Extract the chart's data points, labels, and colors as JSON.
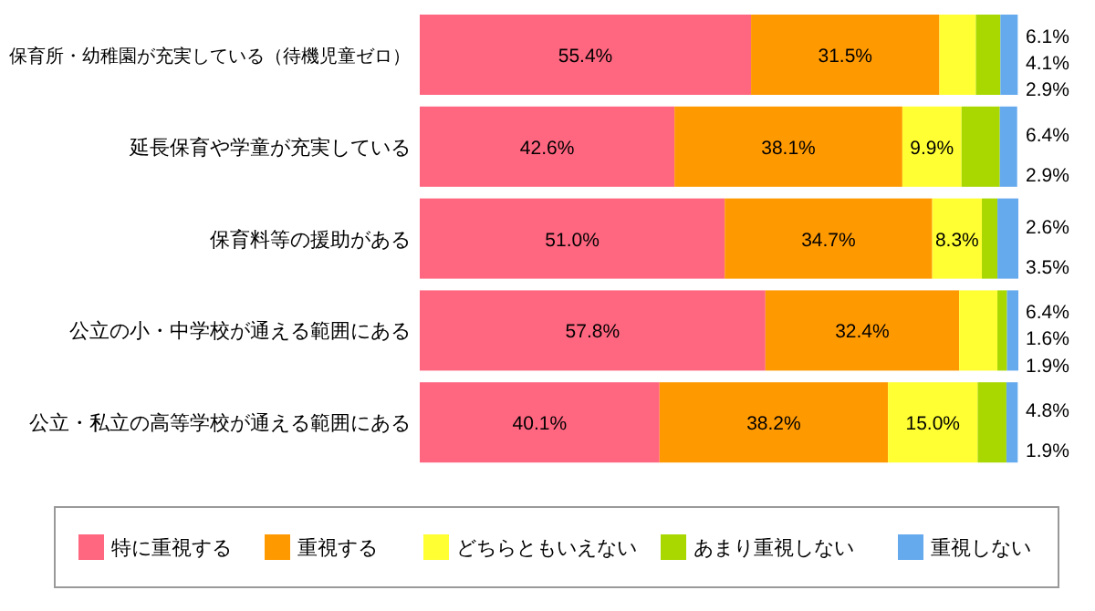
{
  "chart_data": {
    "type": "bar",
    "orientation": "horizontal",
    "stacked": true,
    "legend": "bottom",
    "categories": [
      "保育所・幼稚園が充実している（待機児童ゼロ）",
      "延長保育や学童が充実している",
      "保育料等の援助がある",
      "公立の小・中学校が通える範囲にある",
      "公立・私立の高等学校が通える範囲にある"
    ],
    "series": [
      {
        "name": "特に重視する",
        "color": "#ff6680",
        "values": [
          55.4,
          42.6,
          51.0,
          57.8,
          40.1
        ],
        "value_labels": [
          "55.4%",
          "42.6%",
          "51.0%",
          "57.8%",
          "40.1%"
        ]
      },
      {
        "name": "重視する",
        "color": "#ff9900",
        "values": [
          31.5,
          38.1,
          34.7,
          32.4,
          38.2
        ],
        "value_labels": [
          "31.5%",
          "38.1%",
          "34.7%",
          "32.4%",
          "38.2%"
        ]
      },
      {
        "name": "どちらともいえない",
        "color": "#ffff33",
        "values": [
          6.1,
          9.9,
          8.3,
          6.4,
          15.0
        ],
        "value_labels": [
          "6.1%",
          "9.9%",
          "8.3%",
          "6.4%",
          "15.0%"
        ]
      },
      {
        "name": "あまり重視しない",
        "color": "#a8d800",
        "values": [
          4.1,
          6.4,
          2.6,
          1.6,
          4.8
        ],
        "value_labels": [
          "4.1%",
          "6.4%",
          "2.6%",
          "1.6%",
          "4.8%"
        ]
      },
      {
        "name": "重視しない",
        "color": "#66aaee",
        "values": [
          2.9,
          2.9,
          3.5,
          1.9,
          1.9
        ],
        "value_labels": [
          "2.9%",
          "2.9%",
          "3.5%",
          "1.9%",
          "1.9%"
        ]
      }
    ]
  }
}
